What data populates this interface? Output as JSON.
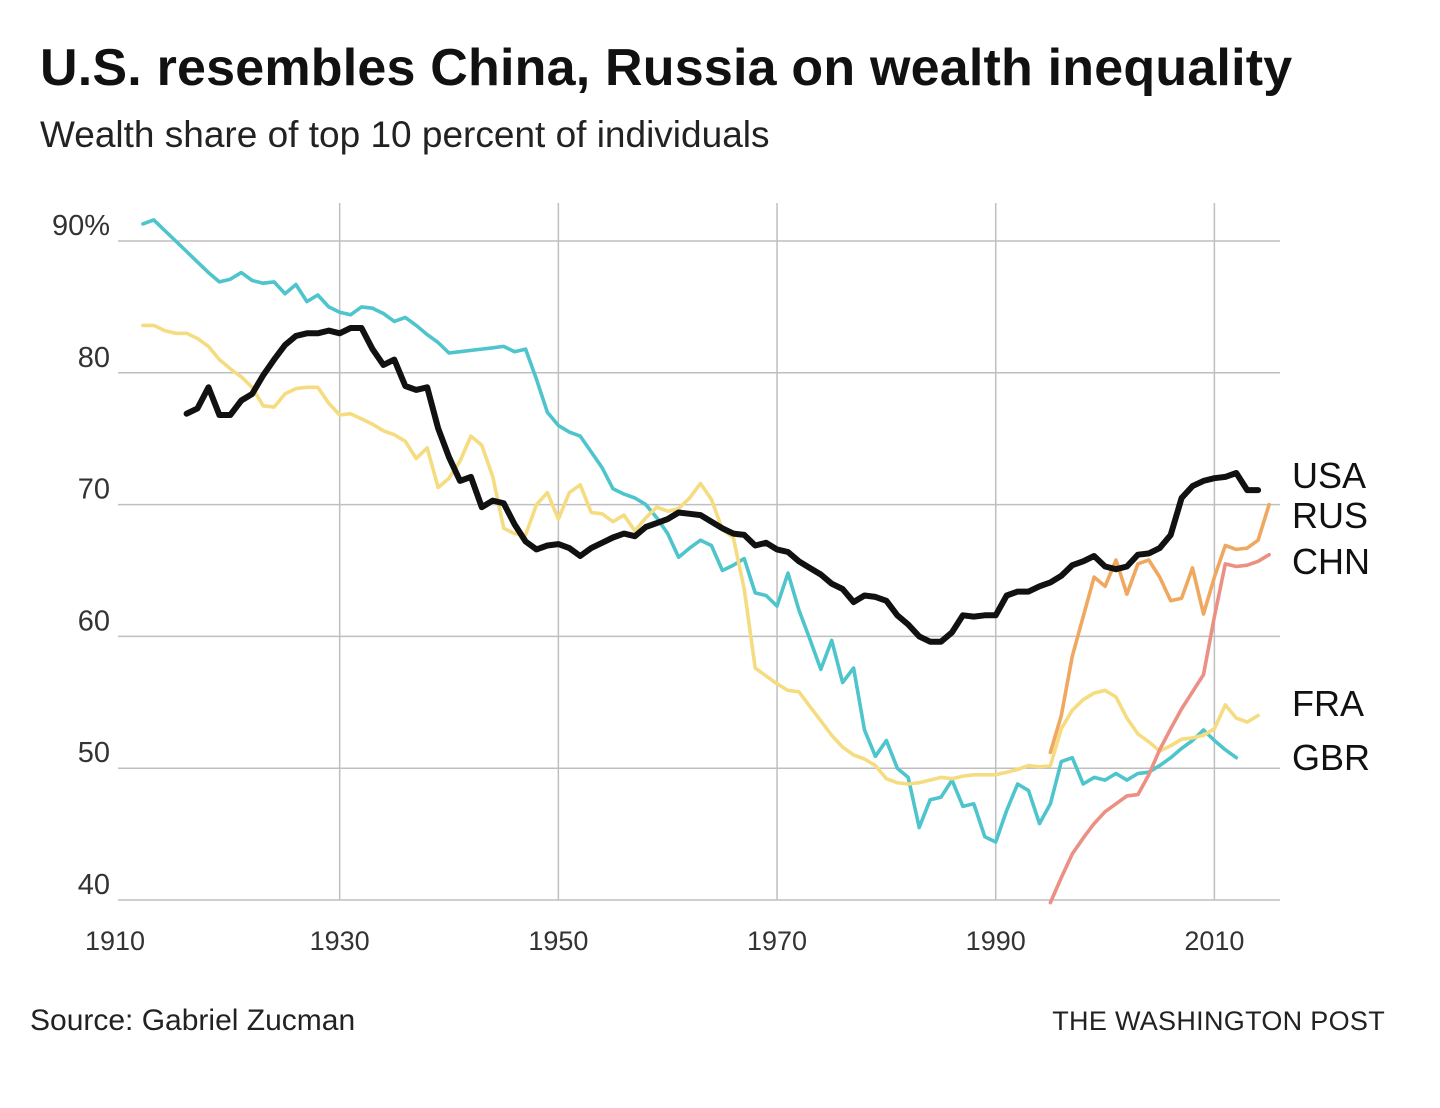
{
  "title": "U.S. resembles China, Russia on wealth inequality",
  "subtitle": "Wealth share of top 10 percent of individuals",
  "source": "Source: Gabriel Zucman",
  "credit": "THE WASHINGTON POST",
  "colors": {
    "USA": "#111111",
    "GBR": "#4ec4cc",
    "FRA": "#f6dc80",
    "RUS": "#f0a860",
    "CHN": "#ec8f84",
    "grid": "#bfbfbf"
  },
  "chart_data": {
    "type": "line",
    "title": "U.S. resembles China, Russia on wealth inequality",
    "subtitle": "Wealth share of top 10 percent of individuals",
    "xlim": [
      1910,
      2016
    ],
    "ylim": [
      40,
      92
    ],
    "x_ticks": [
      1910,
      1930,
      1950,
      1970,
      1990,
      2010
    ],
    "y_ticks": [
      40,
      50,
      60,
      70,
      80,
      90
    ],
    "y_tick_labels": [
      "40",
      "50",
      "60",
      "70",
      "80",
      "90%"
    ],
    "grid": "on",
    "legend": "inline labels at right end of lines",
    "series": [
      {
        "name": "GBR",
        "x": [
          1912,
          1913,
          1914,
          1915,
          1916,
          1917,
          1918,
          1919,
          1920,
          1921,
          1922,
          1923,
          1924,
          1925,
          1926,
          1927,
          1928,
          1929,
          1930,
          1931,
          1932,
          1933,
          1934,
          1935,
          1936,
          1937,
          1938,
          1939,
          1940,
          1941,
          1942,
          1943,
          1944,
          1945,
          1946,
          1947,
          1948,
          1949,
          1950,
          1951,
          1952,
          1953,
          1954,
          1955,
          1956,
          1957,
          1958,
          1959,
          1960,
          1961,
          1962,
          1963,
          1964,
          1965,
          1966,
          1967,
          1968,
          1969,
          1970,
          1971,
          1972,
          1973,
          1974,
          1975,
          1976,
          1977,
          1978,
          1979,
          1980,
          1981,
          1982,
          1983,
          1984,
          1985,
          1986,
          1987,
          1988,
          1989,
          1990,
          1991,
          1992,
          1993,
          1994,
          1995,
          1996,
          1997,
          1998,
          1999,
          2000,
          2001,
          2002,
          2003,
          2004,
          2005,
          2006,
          2007,
          2008,
          2009,
          2010,
          2011,
          2012
        ],
        "values": [
          91.3,
          91.6,
          90.8,
          90.0,
          89.2,
          88.4,
          87.6,
          86.9,
          87.1,
          87.6,
          87.0,
          86.8,
          86.9,
          86.0,
          86.7,
          85.4,
          85.9,
          85.0,
          84.6,
          84.4,
          85.0,
          84.9,
          84.5,
          83.9,
          84.2,
          83.6,
          82.9,
          82.3,
          81.5,
          81.6,
          81.7,
          81.8,
          81.9,
          82.0,
          81.6,
          81.8,
          79.5,
          77.0,
          76.0,
          75.5,
          75.2,
          74.0,
          72.8,
          71.2,
          70.8,
          70.5,
          70.0,
          69.0,
          67.8,
          66.0,
          66.7,
          67.3,
          66.9,
          65.0,
          65.4,
          65.9,
          63.3,
          63.1,
          62.3,
          64.8,
          62.0,
          59.8,
          57.5,
          59.7,
          56.5,
          57.6,
          52.9,
          50.9,
          52.1,
          50.0,
          49.3,
          45.5,
          47.6,
          47.8,
          49.1,
          47.1,
          47.3,
          44.8,
          44.4,
          46.8,
          48.8,
          48.3,
          45.8,
          47.3,
          50.5,
          50.8,
          48.8,
          49.3,
          49.1,
          49.6,
          49.1,
          49.6,
          49.7,
          50.2,
          50.8,
          51.5,
          52.1,
          52.9,
          52.1,
          51.4,
          50.8
        ]
      },
      {
        "name": "FRA",
        "x": [
          1912,
          1913,
          1914,
          1915,
          1916,
          1917,
          1918,
          1919,
          1920,
          1921,
          1922,
          1923,
          1924,
          1925,
          1926,
          1927,
          1928,
          1929,
          1930,
          1931,
          1932,
          1933,
          1934,
          1935,
          1936,
          1937,
          1938,
          1939,
          1940,
          1941,
          1942,
          1943,
          1944,
          1945,
          1946,
          1947,
          1948,
          1949,
          1950,
          1951,
          1952,
          1953,
          1954,
          1955,
          1956,
          1957,
          1958,
          1959,
          1960,
          1961,
          1962,
          1963,
          1964,
          1965,
          1966,
          1967,
          1968,
          1969,
          1970,
          1971,
          1972,
          1973,
          1974,
          1975,
          1976,
          1977,
          1978,
          1979,
          1980,
          1981,
          1982,
          1983,
          1984,
          1985,
          1986,
          1987,
          1988,
          1989,
          1990,
          1991,
          1992,
          1993,
          1994,
          1995,
          1996,
          1997,
          1998,
          1999,
          2000,
          2001,
          2002,
          2003,
          2004,
          2005,
          2006,
          2007,
          2008,
          2009,
          2010,
          2011,
          2012,
          2013,
          2014
        ],
        "values": [
          83.6,
          83.6,
          83.2,
          83.0,
          83.0,
          82.6,
          82.0,
          81.0,
          80.3,
          79.7,
          78.9,
          77.5,
          77.4,
          78.4,
          78.8,
          78.9,
          78.9,
          77.7,
          76.8,
          76.9,
          76.5,
          76.1,
          75.6,
          75.3,
          74.8,
          73.5,
          74.3,
          71.3,
          72.0,
          73.3,
          75.2,
          74.5,
          72.1,
          68.2,
          67.8,
          67.7,
          70.0,
          70.9,
          68.9,
          70.9,
          71.5,
          69.4,
          69.3,
          68.7,
          69.2,
          68.0,
          69.0,
          69.8,
          69.5,
          69.7,
          70.5,
          71.6,
          70.4,
          68.1,
          67.5,
          63.6,
          57.6,
          57.0,
          56.4,
          55.9,
          55.8,
          54.7,
          53.6,
          52.5,
          51.6,
          51.0,
          50.7,
          50.2,
          49.2,
          48.9,
          48.8,
          48.9,
          49.1,
          49.3,
          49.2,
          49.4,
          49.5,
          49.5,
          49.5,
          49.7,
          49.9,
          50.2,
          50.1,
          50.2,
          53.0,
          54.4,
          55.2,
          55.7,
          55.9,
          55.4,
          53.8,
          52.6,
          52.0,
          51.3,
          51.7,
          52.2,
          52.3,
          52.5,
          53.0,
          54.8,
          53.8,
          53.5,
          54.0
        ]
      },
      {
        "name": "RUS",
        "x": [
          1995,
          1996,
          1997,
          1998,
          1999,
          2000,
          2001,
          2002,
          2003,
          2004,
          2005,
          2006,
          2007,
          2008,
          2009,
          2010,
          2011,
          2012,
          2013,
          2014,
          2015
        ],
        "values": [
          51.2,
          54.0,
          58.5,
          61.5,
          64.5,
          63.8,
          65.8,
          63.2,
          65.5,
          65.8,
          64.5,
          62.7,
          62.9,
          65.2,
          61.7,
          64.5,
          66.9,
          66.6,
          66.7,
          67.3,
          70.0
        ]
      },
      {
        "name": "CHN",
        "x": [
          1995,
          1996,
          1997,
          1998,
          1999,
          2000,
          2001,
          2002,
          2003,
          2004,
          2005,
          2006,
          2007,
          2008,
          2009,
          2010,
          2011,
          2012,
          2013,
          2014,
          2015
        ],
        "values": [
          39.8,
          41.7,
          43.5,
          44.7,
          45.8,
          46.7,
          47.3,
          47.9,
          48.0,
          49.5,
          51.4,
          53.0,
          54.5,
          55.8,
          57.1,
          61.5,
          65.5,
          65.3,
          65.4,
          65.7,
          66.2
        ]
      },
      {
        "name": "USA",
        "x": [
          1916,
          1917,
          1918,
          1919,
          1920,
          1921,
          1922,
          1923,
          1924,
          1925,
          1926,
          1927,
          1928,
          1929,
          1930,
          1931,
          1932,
          1933,
          1934,
          1935,
          1936,
          1937,
          1938,
          1939,
          1940,
          1941,
          1942,
          1943,
          1944,
          1945,
          1946,
          1947,
          1948,
          1949,
          1950,
          1951,
          1952,
          1953,
          1954,
          1955,
          1956,
          1957,
          1958,
          1959,
          1960,
          1961,
          1962,
          1963,
          1964,
          1965,
          1966,
          1967,
          1968,
          1969,
          1970,
          1971,
          1972,
          1973,
          1974,
          1975,
          1976,
          1977,
          1978,
          1979,
          1980,
          1981,
          1982,
          1983,
          1984,
          1985,
          1986,
          1987,
          1988,
          1989,
          1990,
          1991,
          1992,
          1993,
          1994,
          1995,
          1996,
          1997,
          1998,
          1999,
          2000,
          2001,
          2002,
          2003,
          2004,
          2005,
          2006,
          2007,
          2008,
          2009,
          2010,
          2011,
          2012,
          2013,
          2014
        ],
        "values": [
          76.9,
          77.3,
          78.9,
          76.8,
          76.8,
          77.9,
          78.4,
          79.8,
          81.0,
          82.1,
          82.8,
          83.0,
          83.0,
          83.2,
          83.0,
          83.4,
          83.4,
          81.8,
          80.6,
          81.0,
          79.0,
          78.7,
          78.9,
          75.8,
          73.6,
          71.8,
          72.1,
          69.8,
          70.3,
          70.1,
          68.5,
          67.2,
          66.6,
          66.9,
          67.0,
          66.7,
          66.1,
          66.7,
          67.1,
          67.5,
          67.8,
          67.6,
          68.3,
          68.6,
          68.9,
          69.4,
          69.3,
          69.2,
          68.7,
          68.2,
          67.8,
          67.7,
          66.9,
          67.1,
          66.6,
          66.4,
          65.7,
          65.2,
          64.7,
          64.0,
          63.6,
          62.6,
          63.1,
          63.0,
          62.7,
          61.6,
          60.9,
          60.0,
          59.6,
          59.6,
          60.3,
          61.6,
          61.5,
          61.6,
          61.6,
          63.1,
          63.4,
          63.4,
          63.8,
          64.1,
          64.6,
          65.4,
          65.7,
          66.1,
          65.3,
          65.1,
          65.3,
          66.2,
          66.3,
          66.7,
          67.7,
          70.5,
          71.4,
          71.8,
          72.0,
          72.1,
          72.4,
          71.1,
          71.1
        ]
      }
    ]
  }
}
